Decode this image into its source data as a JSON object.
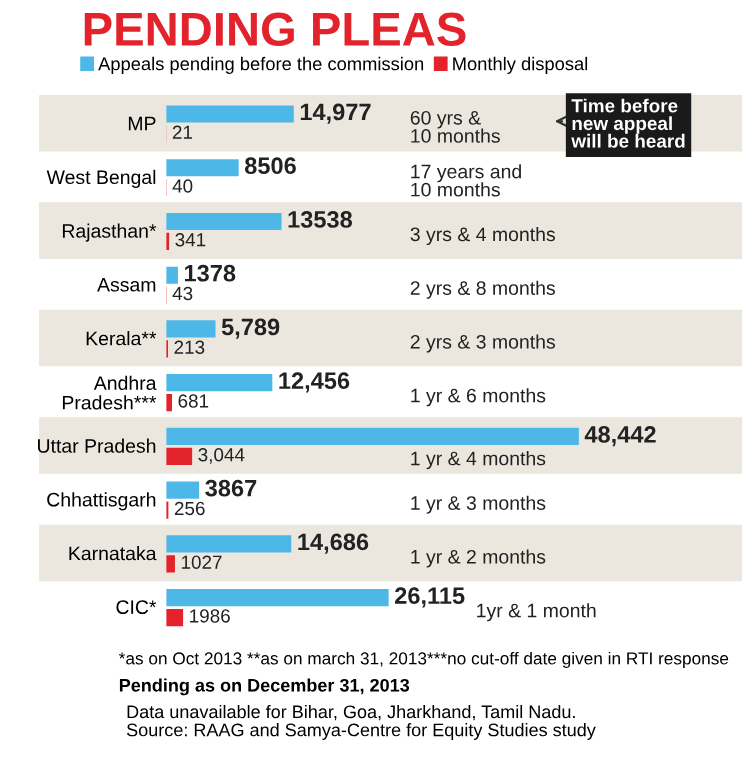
{
  "chart_data": {
    "type": "bar",
    "orientation": "horizontal",
    "title": "PENDING PLEAS",
    "categories": [
      "MP",
      "West Bengal",
      "Rajasthan*",
      "Assam",
      "Kerala**",
      "Andhra\nPradesh***",
      "Uttar Pradesh",
      "Chhattisgarh",
      "Karnataka",
      "CIC*"
    ],
    "series": [
      {
        "name": "Appeals pending before the commission",
        "color": "#4db8e8",
        "values": [
          14977,
          8506,
          13538,
          1378,
          5789,
          12456,
          48442,
          3867,
          14686,
          26115
        ],
        "value_labels": [
          "14,977",
          "8506",
          "13538",
          "1378",
          "5,789",
          "12,456",
          "48,442",
          "3867",
          "14,686",
          "26,115"
        ]
      },
      {
        "name": "Monthly disposal",
        "color": "#e3232b",
        "values": [
          21,
          40,
          341,
          43,
          213,
          681,
          3044,
          256,
          1027,
          1986
        ],
        "value_labels": [
          "21",
          "40",
          "341",
          "43",
          "213",
          "681",
          "3,044",
          "256",
          "1027",
          "1986"
        ]
      }
    ],
    "xlim": [
      0,
      61500
    ],
    "tick_labels": "y",
    "legend": "top left",
    "annotations": [
      "60 yrs &\n10 months",
      "17 years and\n10 months",
      "3 yrs & 4 months",
      "2 yrs & 8 months",
      "2 yrs & 3 months",
      "1 yr & 6 months",
      "1 yr & 4 months",
      "1 yr & 3 months",
      "1 yr & 2 months",
      "1yr & 1 month",
      "Time before\nnew appeal\nwill be heard",
      "*as on Oct 2013 **as on march 31, 2013***no cut-off date given in RTI response",
      "Pending as on December 31, 2013",
      "Data unavailable for Bihar, Goa, Jharkhand, Tamil Nadu.\nSource: RAAG and Samya-Centre for Equity Studies study"
    ]
  }
}
